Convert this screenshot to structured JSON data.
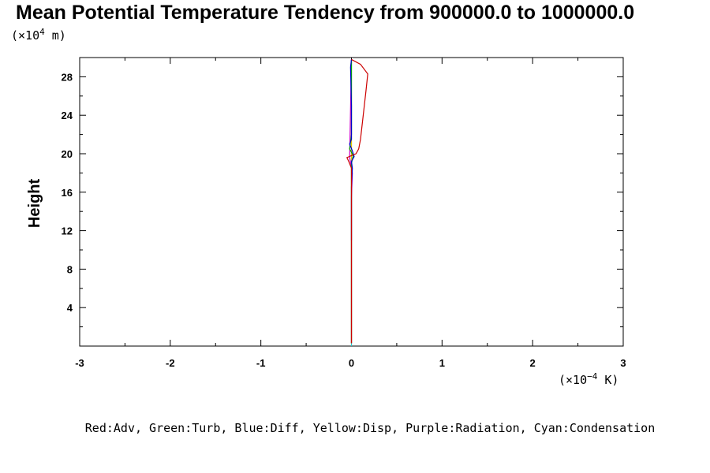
{
  "chart_data": {
    "type": "line",
    "title": "Mean Potential Temperature Tendency from 900000.0 to 1000000.0",
    "ylabel": "Height",
    "y_unit": {
      "prefix": "(×10",
      "exp": "4",
      "suffix": " m)"
    },
    "x_unit": {
      "prefix": "(×10",
      "exp": "−4",
      "suffix": " K)"
    },
    "xlim": [
      -3,
      3
    ],
    "ylim": [
      0,
      30
    ],
    "x_ticks": [
      -3,
      -2,
      -1,
      0,
      1,
      2,
      3
    ],
    "x_tick_labels": [
      "-3",
      "-2",
      "-1",
      "0",
      "1",
      "2",
      "3"
    ],
    "y_ticks": [
      4,
      8,
      12,
      16,
      20,
      24,
      28
    ],
    "y_tick_labels": [
      "4",
      "8",
      "12",
      "16",
      "20",
      "24",
      "28"
    ],
    "grid": false,
    "caption": "Red:Adv, Green:Turb, Blue:Diff, Yellow:Disp, Purple:Radiation, Cyan:Condensation",
    "series": [
      {
        "name": "Adv",
        "color": "#cc0000",
        "points": [
          [
            0.0,
            29.8
          ],
          [
            0.1,
            29.3
          ],
          [
            0.18,
            28.3
          ],
          [
            0.16,
            26.5
          ],
          [
            0.13,
            24.0
          ],
          [
            0.1,
            21.5
          ],
          [
            0.08,
            20.5
          ],
          [
            0.05,
            20.0
          ],
          [
            0.0,
            19.8
          ],
          [
            -0.05,
            19.6
          ],
          [
            -0.03,
            19.2
          ],
          [
            0.0,
            18.5
          ],
          [
            0.0,
            17.0
          ],
          [
            0.0,
            12.0
          ],
          [
            0.0,
            0.3
          ]
        ]
      },
      {
        "name": "Turb",
        "color": "#00aa00",
        "points": [
          [
            0.0,
            29.8
          ],
          [
            0.0,
            22.0
          ],
          [
            -0.02,
            20.5
          ],
          [
            0.02,
            19.8
          ],
          [
            0.0,
            19.0
          ],
          [
            0.0,
            0.3
          ]
        ]
      },
      {
        "name": "Diff",
        "color": "#0000cc",
        "points": [
          [
            0.0,
            29.8
          ],
          [
            -0.01,
            29.0
          ],
          [
            0.0,
            25.0
          ],
          [
            0.0,
            21.5
          ],
          [
            -0.02,
            21.0
          ],
          [
            0.01,
            20.3
          ],
          [
            0.03,
            19.7
          ],
          [
            0.0,
            19.2
          ],
          [
            0.01,
            18.5
          ],
          [
            0.0,
            16.5
          ],
          [
            0.0,
            11.0
          ]
        ]
      },
      {
        "name": "Disp",
        "color": "#e6c200",
        "points": [
          [
            0.0,
            29.8
          ],
          [
            0.0,
            0.3
          ]
        ]
      },
      {
        "name": "Radiation",
        "color": "#cc00cc",
        "points": [
          [
            0.0,
            29.8
          ],
          [
            -0.02,
            19.6
          ],
          [
            0.01,
            18.0
          ],
          [
            0.0,
            15.5
          ],
          [
            0.0,
            0.3
          ]
        ]
      },
      {
        "name": "Condensation",
        "color": "#22cccc",
        "points": [
          [
            0.0,
            29.8
          ],
          [
            0.0,
            0.0
          ]
        ]
      }
    ]
  }
}
